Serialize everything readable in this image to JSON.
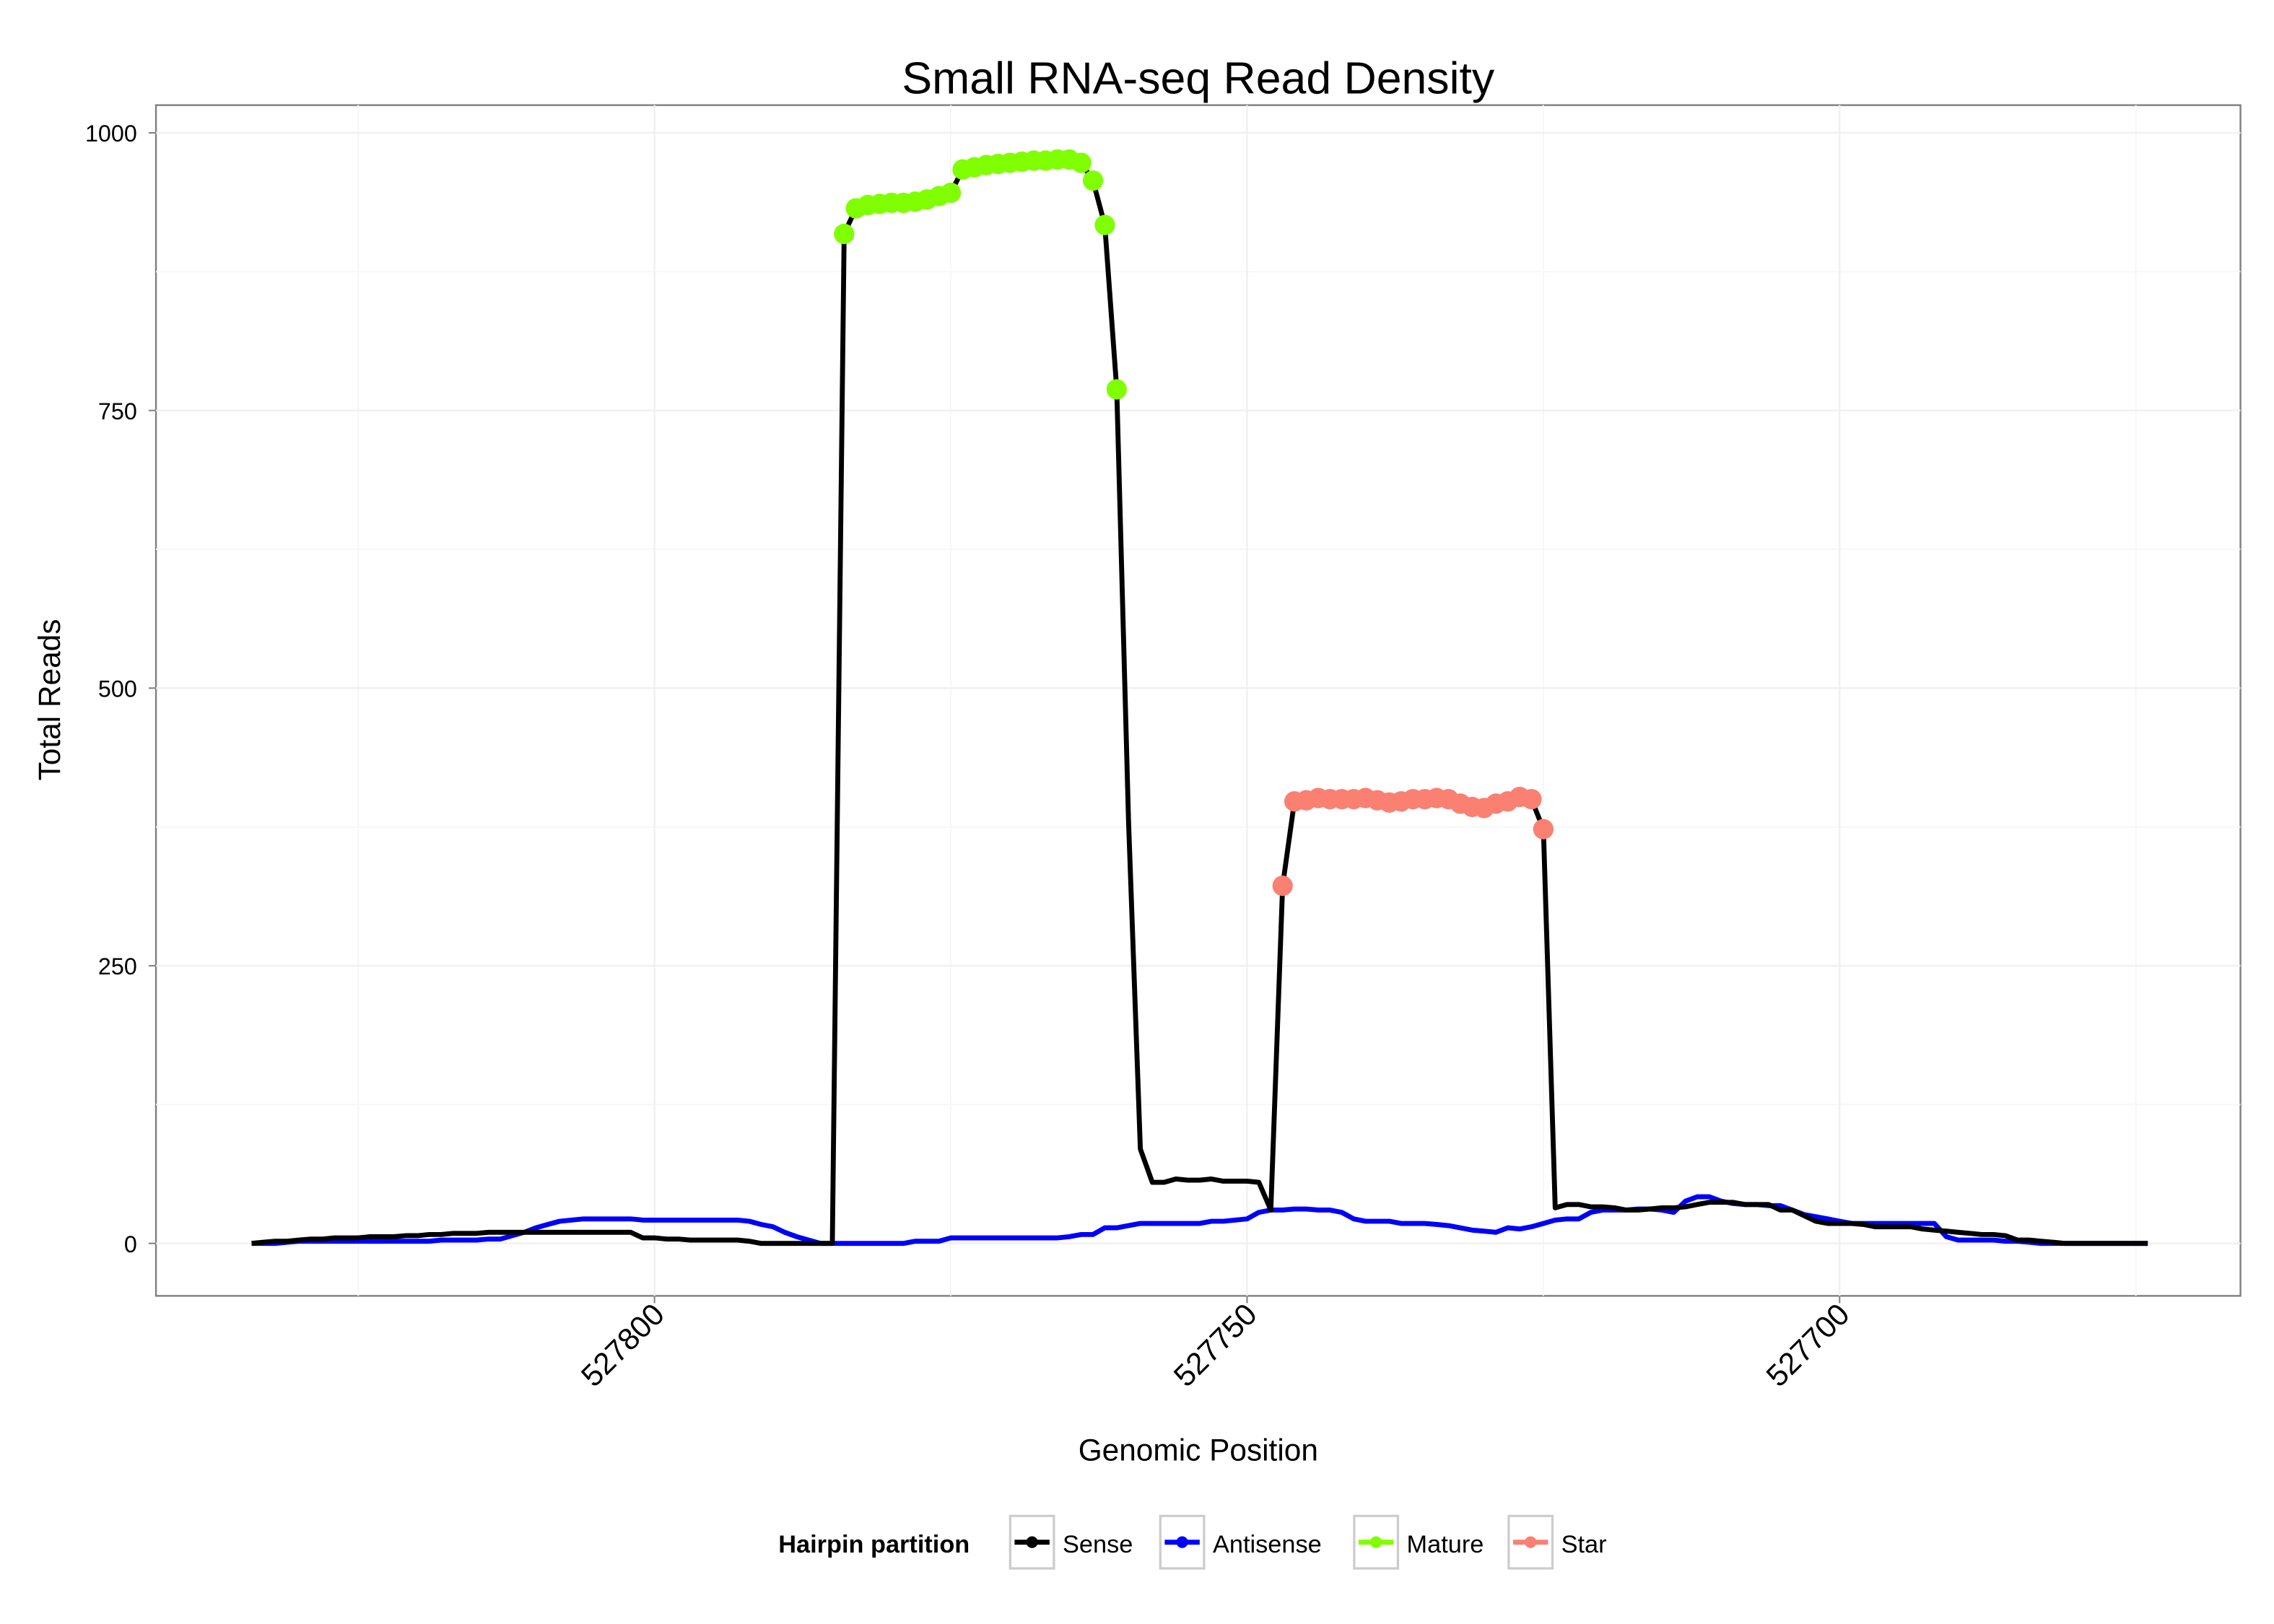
{
  "chart_data": {
    "type": "line",
    "title": "Small RNA-seq Read Density",
    "xlabel": "Genomic Position",
    "ylabel": "Total Reads",
    "xlim": [
      527842,
      527666
    ],
    "x_reversed": true,
    "ylim": [
      -48,
      1030
    ],
    "x_ticks": [
      527800,
      527750,
      527700
    ],
    "x_tick_labels": [
      "527800",
      "527750",
      "527700"
    ],
    "y_ticks": [
      0,
      250,
      500,
      750,
      1000
    ],
    "y_tick_labels": [
      "0",
      "250",
      "500",
      "750",
      "1000"
    ],
    "grid": true,
    "x_start": 527834,
    "x_step": -1,
    "series": [
      {
        "name": "Sense",
        "color": "#000000",
        "values": [
          0,
          1,
          2,
          2,
          3,
          4,
          4,
          5,
          5,
          5,
          6,
          6,
          6,
          7,
          7,
          8,
          8,
          9,
          9,
          9,
          10,
          10,
          10,
          10,
          10,
          10,
          10,
          10,
          10,
          10,
          10,
          10,
          10,
          5,
          5,
          4,
          4,
          3,
          3,
          3,
          3,
          3,
          2,
          0,
          0,
          0,
          0,
          0,
          0,
          0,
          909,
          932,
          935,
          936,
          937,
          937,
          938,
          940,
          943,
          946,
          967,
          969,
          971,
          972,
          973,
          974,
          975,
          975,
          976,
          976,
          973,
          957,
          917,
          769,
          380,
          85,
          55,
          55,
          58,
          57,
          57,
          58,
          56,
          56,
          56,
          55,
          30,
          322,
          398,
          399,
          401,
          400,
          400,
          400,
          401,
          399,
          397,
          398,
          400,
          400,
          401,
          400,
          396,
          393,
          392,
          396,
          398,
          402,
          400,
          373,
          32,
          35,
          35,
          33,
          33,
          32,
          30,
          30,
          31,
          32,
          32,
          33,
          35,
          37,
          37,
          37,
          35,
          35,
          35,
          30,
          30,
          25,
          20,
          18,
          18,
          18,
          17,
          15,
          15,
          15,
          15,
          13,
          12,
          11,
          10,
          9,
          8,
          8,
          7,
          3,
          3,
          2,
          1,
          0,
          0,
          0,
          0,
          0,
          0,
          0,
          0
        ]
      },
      {
        "name": "Antisense",
        "color": "#0000ff",
        "values": [
          0,
          0,
          0,
          1,
          2,
          2,
          2,
          2,
          2,
          2,
          2,
          2,
          2,
          2,
          2,
          2,
          3,
          3,
          3,
          3,
          4,
          4,
          7,
          10,
          14,
          17,
          20,
          21,
          22,
          22,
          22,
          22,
          22,
          21,
          21,
          21,
          21,
          21,
          21,
          21,
          21,
          21,
          20,
          17,
          15,
          10,
          6,
          3,
          0,
          0,
          0,
          0,
          0,
          0,
          0,
          0,
          2,
          2,
          2,
          5,
          5,
          5,
          5,
          5,
          5,
          5,
          5,
          5,
          5,
          6,
          8,
          8,
          14,
          14,
          16,
          18,
          18,
          18,
          18,
          18,
          18,
          20,
          20,
          21,
          22,
          28,
          30,
          30,
          31,
          31,
          30,
          30,
          28,
          22,
          20,
          20,
          20,
          18,
          18,
          18,
          17,
          16,
          14,
          12,
          11,
          10,
          14,
          13,
          15,
          18,
          21,
          22,
          22,
          28,
          30,
          30,
          30,
          31,
          31,
          30,
          28,
          38,
          42,
          42,
          38,
          36,
          35,
          35,
          34,
          34,
          30,
          26,
          24,
          22,
          20,
          18,
          18,
          18,
          18,
          18,
          18,
          18,
          18,
          6,
          3,
          3,
          3,
          3,
          2,
          2,
          1,
          0,
          0,
          0,
          0,
          0,
          0,
          0,
          0,
          0,
          0
        ]
      }
    ],
    "points": [
      {
        "name": "Mature",
        "color": "#7fff00",
        "x_start": 527784,
        "values": [
          909,
          932,
          935,
          936,
          937,
          937,
          938,
          940,
          943,
          946,
          967,
          969,
          971,
          972,
          973,
          974,
          975,
          975,
          976,
          976,
          973,
          957,
          917,
          769
        ]
      },
      {
        "name": "Star",
        "color": "#fa8072",
        "x_start": 527747,
        "values": [
          322,
          398,
          399,
          401,
          400,
          400,
          400,
          401,
          399,
          397,
          398,
          400,
          400,
          401,
          400,
          396,
          393,
          392,
          396,
          398,
          402,
          400,
          373
        ]
      }
    ],
    "legend": {
      "title": "Hairpin partition",
      "placement": "bottom",
      "entries": [
        {
          "label": "Sense",
          "color": "#000000"
        },
        {
          "label": "Antisense",
          "color": "#0000ff"
        },
        {
          "label": "Mature",
          "color": "#7fff00"
        },
        {
          "label": "Star",
          "color": "#fa8072"
        }
      ]
    }
  }
}
